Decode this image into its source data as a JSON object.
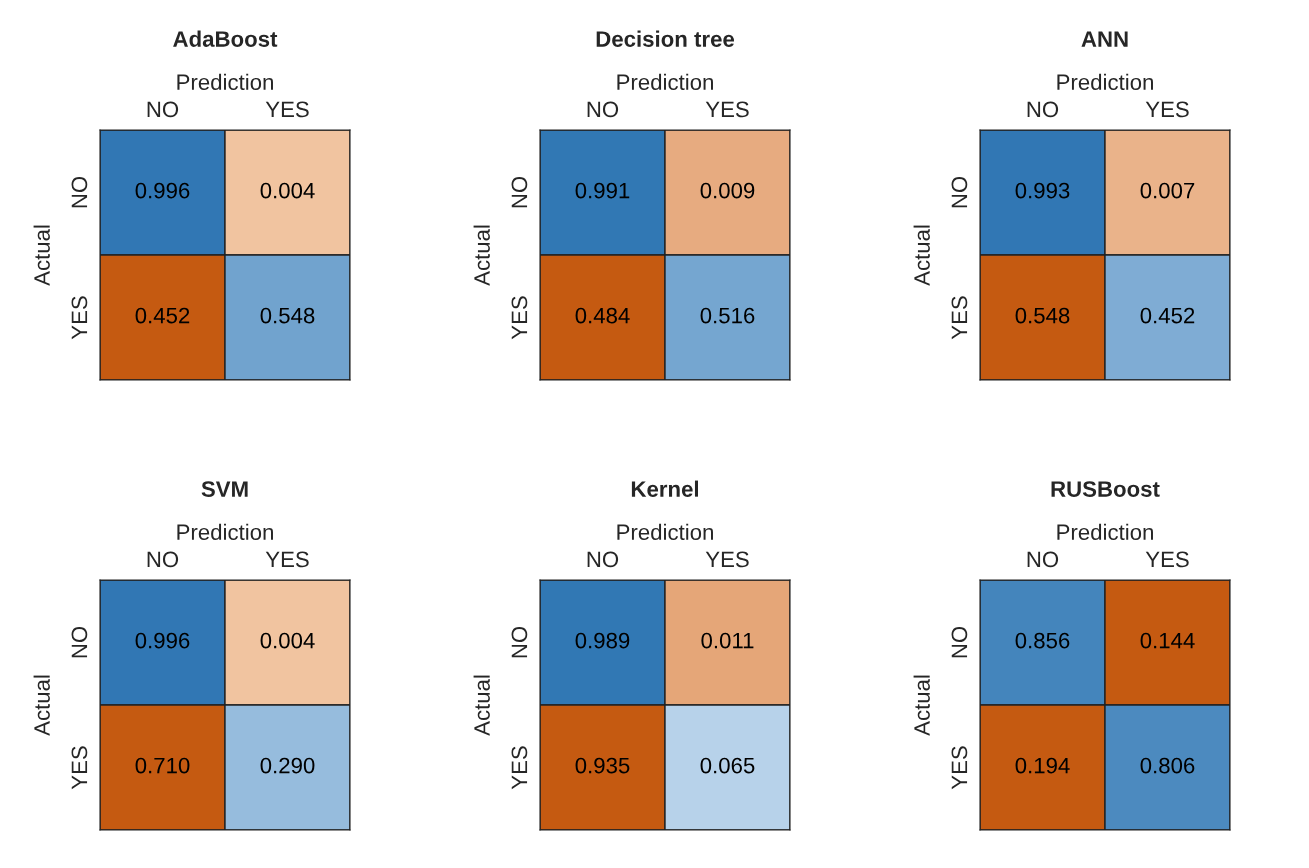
{
  "chart_data": [
    {
      "type": "heatmap",
      "title": "AdaBoost",
      "xlabel": "Prediction",
      "ylabel": "Actual",
      "categories": [
        "NO",
        "YES"
      ],
      "y_categories": [
        "NO",
        "YES"
      ],
      "cells": [
        [
          0.996,
          0.004
        ],
        [
          0.452,
          0.548
        ]
      ],
      "cell_labels": [
        [
          "0.996",
          "0.004"
        ],
        [
          "0.452",
          "0.548"
        ]
      ]
    },
    {
      "type": "heatmap",
      "title": "Decision tree",
      "xlabel": "Prediction",
      "ylabel": "Actual",
      "categories": [
        "NO",
        "YES"
      ],
      "y_categories": [
        "NO",
        "YES"
      ],
      "cells": [
        [
          0.991,
          0.009
        ],
        [
          0.484,
          0.516
        ]
      ],
      "cell_labels": [
        [
          "0.991",
          "0.009"
        ],
        [
          "0.484",
          "0.516"
        ]
      ]
    },
    {
      "type": "heatmap",
      "title": "ANN",
      "xlabel": "Prediction",
      "ylabel": "Actual",
      "categories": [
        "NO",
        "YES"
      ],
      "y_categories": [
        "NO",
        "YES"
      ],
      "cells": [
        [
          0.993,
          0.007
        ],
        [
          0.548,
          0.452
        ]
      ],
      "cell_labels": [
        [
          "0.993",
          "0.007"
        ],
        [
          "0.548",
          "0.452"
        ]
      ]
    },
    {
      "type": "heatmap",
      "title": "SVM",
      "xlabel": "Prediction",
      "ylabel": "Actual",
      "categories": [
        "NO",
        "YES"
      ],
      "y_categories": [
        "NO",
        "YES"
      ],
      "cells": [
        [
          0.996,
          0.004
        ],
        [
          0.71,
          0.29
        ]
      ],
      "cell_labels": [
        [
          "0.996",
          "0.004"
        ],
        [
          "0.710",
          "0.290"
        ]
      ]
    },
    {
      "type": "heatmap",
      "title": "Kernel",
      "xlabel": "Prediction",
      "ylabel": "Actual",
      "categories": [
        "NO",
        "YES"
      ],
      "y_categories": [
        "NO",
        "YES"
      ],
      "cells": [
        [
          0.989,
          0.011
        ],
        [
          0.935,
          0.065
        ]
      ],
      "cell_labels": [
        [
          "0.989",
          "0.011"
        ],
        [
          "0.935",
          "0.065"
        ]
      ]
    },
    {
      "type": "heatmap",
      "title": "RUSBoost",
      "xlabel": "Prediction",
      "ylabel": "Actual",
      "categories": [
        "NO",
        "YES"
      ],
      "y_categories": [
        "NO",
        "YES"
      ],
      "cells": [
        [
          0.856,
          0.144
        ],
        [
          0.194,
          0.806
        ]
      ],
      "cell_labels": [
        [
          "0.856",
          "0.144"
        ],
        [
          "0.194",
          "0.806"
        ]
      ]
    }
  ]
}
